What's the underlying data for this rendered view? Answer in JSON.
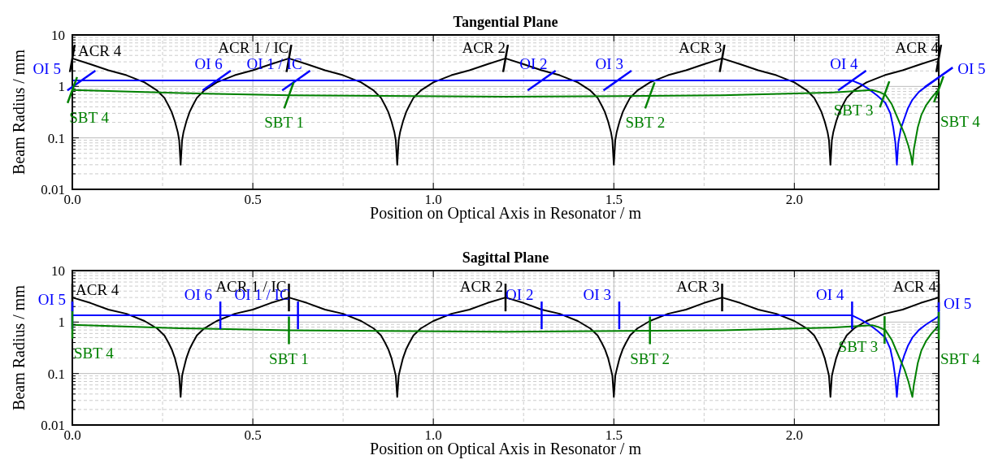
{
  "chart_data": [
    {
      "type": "line",
      "title": "Tangential Plane",
      "xlabel": "Position on Optical Axis in Resonator / m",
      "ylabel": "Beam Radius / mm",
      "log": "y",
      "grid": true,
      "xlim": [
        0,
        2.4
      ],
      "xticks": [
        {
          "value": 0,
          "label": "0.0"
        },
        {
          "value": 0.5,
          "label": "0.5"
        },
        {
          "value": 1,
          "label": "1.0"
        },
        {
          "value": 1.5,
          "label": "1.5"
        },
        {
          "value": 2,
          "label": "2.0"
        }
      ],
      "ylim": [
        0.01,
        10
      ],
      "yticks": [
        0.01,
        0.1,
        1,
        10
      ],
      "series": [
        {
          "color": "#000000",
          "x": [
            0,
            0.05,
            0.1,
            0.15,
            0.2,
            0.235,
            0.255,
            0.266,
            0.275,
            0.284,
            0.292,
            0.296,
            0.3,
            0.304,
            0.308,
            0.316,
            0.325,
            0.334,
            0.345,
            0.365,
            0.4,
            0.45,
            0.5,
            0.55,
            0.6,
            0.65,
            0.7,
            0.75,
            0.8,
            0.835,
            0.855,
            0.866,
            0.875,
            0.884,
            0.892,
            0.896,
            0.9,
            0.904,
            0.908,
            0.916,
            0.925,
            0.934,
            0.945,
            0.965,
            1.0,
            1.05,
            1.1,
            1.15,
            1.2,
            1.25,
            1.3,
            1.35,
            1.4,
            1.435,
            1.455,
            1.466,
            1.475,
            1.484,
            1.492,
            1.496,
            1.5,
            1.504,
            1.508,
            1.516,
            1.525,
            1.534,
            1.545,
            1.565,
            1.6,
            1.65,
            1.7,
            1.75,
            1.8,
            1.85,
            1.9,
            1.95,
            2.0,
            2.035,
            2.055,
            2.066,
            2.075,
            2.084,
            2.092,
            2.096,
            2.1,
            2.104,
            2.108,
            2.116,
            2.125,
            2.134,
            2.145,
            2.165,
            2.2,
            2.25,
            2.3,
            2.35,
            2.4
          ],
          "values": [
            3.5,
            2.7,
            2.06,
            1.65,
            1.2,
            0.83,
            0.6,
            0.43,
            0.32,
            0.21,
            0.13,
            0.09,
            0.03,
            0.09,
            0.13,
            0.21,
            0.32,
            0.43,
            0.6,
            0.83,
            1.2,
            1.65,
            2.06,
            2.7,
            3.5,
            2.7,
            2.06,
            1.65,
            1.2,
            0.83,
            0.6,
            0.43,
            0.32,
            0.21,
            0.13,
            0.09,
            0.03,
            0.09,
            0.13,
            0.21,
            0.32,
            0.43,
            0.6,
            0.83,
            1.2,
            1.65,
            2.06,
            2.7,
            3.5,
            2.7,
            2.06,
            1.65,
            1.2,
            0.83,
            0.6,
            0.43,
            0.32,
            0.21,
            0.13,
            0.09,
            0.03,
            0.09,
            0.13,
            0.21,
            0.32,
            0.43,
            0.6,
            0.83,
            1.2,
            1.65,
            2.06,
            2.7,
            3.5,
            2.7,
            2.06,
            1.65,
            1.2,
            0.83,
            0.6,
            0.43,
            0.32,
            0.21,
            0.13,
            0.09,
            0.03,
            0.09,
            0.13,
            0.21,
            0.32,
            0.43,
            0.6,
            0.83,
            1.2,
            1.65,
            2.06,
            2.7,
            3.5
          ]
        },
        {
          "color": "#0000ff",
          "x": [
            0,
            2.16,
            2.185,
            2.207,
            2.23,
            2.252,
            2.266,
            2.274,
            2.28,
            2.284,
            2.288,
            2.295,
            2.304,
            2.315,
            2.327,
            2.345,
            2.365,
            2.385,
            2.4
          ],
          "values": [
            1.3,
            1.3,
            1.1,
            0.88,
            0.66,
            0.48,
            0.3,
            0.16,
            0.08,
            0.03,
            0.08,
            0.15,
            0.23,
            0.38,
            0.55,
            0.78,
            1.0,
            1.25,
            1.5
          ]
        },
        {
          "color": "#008000",
          "x": [
            0,
            0.3,
            0.6,
            1.2,
            1.8,
            2.1,
            2.216,
            2.235,
            2.252,
            2.27,
            2.29,
            2.305,
            2.316,
            2.323,
            2.327,
            2.331,
            2.342,
            2.352,
            2.365,
            2.38,
            2.4
          ],
          "values": [
            0.85,
            0.74,
            0.67,
            0.63,
            0.67,
            0.76,
            0.85,
            0.78,
            0.69,
            0.45,
            0.21,
            0.12,
            0.07,
            0.045,
            0.03,
            0.06,
            0.16,
            0.28,
            0.43,
            0.6,
            0.88
          ]
        }
      ],
      "annotations": [
        {
          "text": "ACR 4",
          "x": 0,
          "y": 3.5
        },
        {
          "text": "OI 5",
          "x": 0.025,
          "y": 1.3
        },
        {
          "text": "SBT 4",
          "x": 0,
          "y": 0.85
        },
        {
          "text": "OI 6",
          "x": 0.4,
          "y": 1.3
        },
        {
          "text": "ACR 1 / IC",
          "x": 0.6,
          "y": 3.5
        },
        {
          "text": "OI 1 / IC",
          "x": 0.62,
          "y": 1.3
        },
        {
          "text": "SBT 1",
          "x": 0.6,
          "y": 0.67
        },
        {
          "text": "ACR 2",
          "x": 1.2,
          "y": 3.5
        },
        {
          "text": "OI 2",
          "x": 1.3,
          "y": 1.3
        },
        {
          "text": "OI 3",
          "x": 1.51,
          "y": 1.3
        },
        {
          "text": "SBT 2",
          "x": 1.6,
          "y": 0.67
        },
        {
          "text": "ACR 3",
          "x": 1.8,
          "y": 3.5
        },
        {
          "text": "OI 4",
          "x": 2.16,
          "y": 1.3
        },
        {
          "text": "SBT 3",
          "x": 2.25,
          "y": 0.7
        },
        {
          "text": "ACR 4",
          "x": 2.4,
          "y": 3.5
        },
        {
          "text": "OI 5",
          "x": 2.4,
          "y": 1.5
        },
        {
          "text": "SBT 4",
          "x": 2.4,
          "y": 0.88
        }
      ]
    },
    {
      "type": "line",
      "title": "Sagittal Plane",
      "xlabel": "Position on Optical Axis in Resonator / m",
      "ylabel": "Beam Radius / mm",
      "log": "y",
      "grid": true,
      "xlim": [
        0,
        2.4
      ],
      "xticks": [
        {
          "value": 0,
          "label": "0.0"
        },
        {
          "value": 0.5,
          "label": "0.5"
        },
        {
          "value": 1,
          "label": "1.0"
        },
        {
          "value": 1.5,
          "label": "1.5"
        },
        {
          "value": 2,
          "label": "2.0"
        }
      ],
      "ylim": [
        0.01,
        10
      ],
      "yticks": [
        0.01,
        0.1,
        1,
        10
      ],
      "series": [
        {
          "color": "#000000",
          "x": [
            0,
            0.05,
            0.1,
            0.15,
            0.2,
            0.235,
            0.255,
            0.266,
            0.275,
            0.284,
            0.292,
            0.296,
            0.3,
            0.304,
            0.308,
            0.316,
            0.325,
            0.334,
            0.345,
            0.365,
            0.4,
            0.45,
            0.5,
            0.55,
            0.6,
            0.65,
            0.7,
            0.75,
            0.8,
            0.835,
            0.855,
            0.866,
            0.875,
            0.884,
            0.892,
            0.896,
            0.9,
            0.904,
            0.908,
            0.916,
            0.925,
            0.934,
            0.945,
            0.965,
            1.0,
            1.05,
            1.1,
            1.15,
            1.2,
            1.25,
            1.3,
            1.35,
            1.4,
            1.435,
            1.455,
            1.466,
            1.475,
            1.484,
            1.492,
            1.496,
            1.5,
            1.504,
            1.508,
            1.516,
            1.525,
            1.534,
            1.545,
            1.565,
            1.6,
            1.65,
            1.7,
            1.75,
            1.8,
            1.85,
            1.9,
            1.95,
            2.0,
            2.035,
            2.055,
            2.066,
            2.075,
            2.084,
            2.092,
            2.096,
            2.1,
            2.104,
            2.108,
            2.116,
            2.125,
            2.134,
            2.145,
            2.165,
            2.2,
            2.25,
            2.3,
            2.35,
            2.4
          ],
          "values": [
            3,
            2.35,
            1.75,
            1.45,
            1.05,
            0.75,
            0.55,
            0.4,
            0.3,
            0.2,
            0.12,
            0.09,
            0.035,
            0.09,
            0.12,
            0.2,
            0.3,
            0.4,
            0.55,
            0.75,
            1.05,
            1.45,
            1.75,
            2.35,
            3,
            2.35,
            1.75,
            1.45,
            1.05,
            0.75,
            0.55,
            0.4,
            0.3,
            0.2,
            0.12,
            0.09,
            0.035,
            0.09,
            0.12,
            0.2,
            0.3,
            0.4,
            0.55,
            0.75,
            1.05,
            1.45,
            1.75,
            2.35,
            3,
            2.35,
            1.75,
            1.45,
            1.05,
            0.75,
            0.55,
            0.4,
            0.3,
            0.2,
            0.12,
            0.09,
            0.035,
            0.09,
            0.12,
            0.2,
            0.3,
            0.4,
            0.55,
            0.75,
            1.05,
            1.45,
            1.75,
            2.35,
            3,
            2.35,
            1.75,
            1.45,
            1.05,
            0.75,
            0.55,
            0.4,
            0.3,
            0.2,
            0.12,
            0.09,
            0.035,
            0.09,
            0.12,
            0.2,
            0.3,
            0.4,
            0.55,
            0.75,
            1.05,
            1.45,
            1.75,
            2.35,
            3
          ]
        },
        {
          "color": "#0000ff",
          "x": [
            0,
            2.16,
            2.185,
            2.207,
            2.23,
            2.252,
            2.266,
            2.274,
            2.28,
            2.284,
            2.288,
            2.295,
            2.304,
            2.315,
            2.327,
            2.345,
            2.365,
            2.385,
            2.4
          ],
          "values": [
            1.35,
            1.35,
            1.1,
            0.9,
            0.68,
            0.5,
            0.3,
            0.16,
            0.08,
            0.035,
            0.08,
            0.14,
            0.22,
            0.35,
            0.5,
            0.7,
            0.9,
            1.1,
            1.3
          ]
        },
        {
          "color": "#008000",
          "x": [
            0,
            0.3,
            0.6,
            1.2,
            1.8,
            2.1,
            2.216,
            2.235,
            2.252,
            2.27,
            2.29,
            2.305,
            2.316,
            2.323,
            2.327,
            2.331,
            2.342,
            2.352,
            2.365,
            2.38,
            2.4
          ],
          "values": [
            0.88,
            0.76,
            0.69,
            0.65,
            0.69,
            0.78,
            0.87,
            0.79,
            0.7,
            0.45,
            0.21,
            0.12,
            0.07,
            0.045,
            0.035,
            0.06,
            0.16,
            0.28,
            0.43,
            0.6,
            0.85
          ]
        }
      ],
      "annotations": [
        {
          "text": "ACR 4",
          "x": 0,
          "y": 3
        },
        {
          "text": "OI 5",
          "x": 0,
          "y": 1.35
        },
        {
          "text": "SBT 4",
          "x": 0,
          "y": 0.88
        },
        {
          "text": "OI 6",
          "x": 0.41,
          "y": 1.35
        },
        {
          "text": "ACR 1 / IC",
          "x": 0.6,
          "y": 3
        },
        {
          "text": "OI 1 / IC",
          "x": 0.625,
          "y": 1.35
        },
        {
          "text": "SBT 1",
          "x": 0.6,
          "y": 0.69
        },
        {
          "text": "ACR 2",
          "x": 1.2,
          "y": 3
        },
        {
          "text": "OI 2",
          "x": 1.3,
          "y": 1.35
        },
        {
          "text": "OI 3",
          "x": 1.515,
          "y": 1.35
        },
        {
          "text": "SBT 2",
          "x": 1.6,
          "y": 0.69
        },
        {
          "text": "ACR 3",
          "x": 1.8,
          "y": 3
        },
        {
          "text": "OI 4",
          "x": 2.16,
          "y": 1.35
        },
        {
          "text": "SBT 3",
          "x": 2.25,
          "y": 0.7
        },
        {
          "text": "ACR 4",
          "x": 2.4,
          "y": 3
        },
        {
          "text": "OI 5",
          "x": 2.4,
          "y": 1.3
        },
        {
          "text": "SBT 4",
          "x": 2.4,
          "y": 0.85
        }
      ]
    }
  ]
}
